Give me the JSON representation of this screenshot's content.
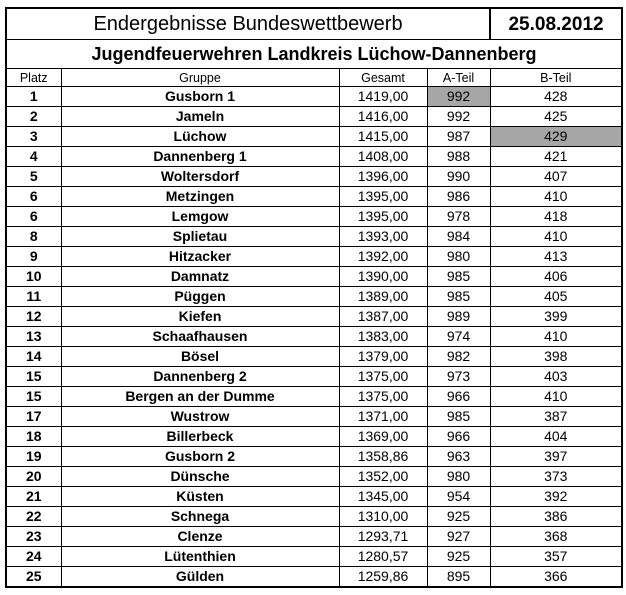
{
  "title": "Endergebnisse  Bundeswettbewerb",
  "date": "25.08.2012",
  "subtitle": "Jugendfeuerwehren Landkreis Lüchow-Dannenberg",
  "headers": {
    "platz": "Platz",
    "gruppe": "Gruppe",
    "gesamt": "Gesamt",
    "a_teil": "A-Teil",
    "b_teil": "B-Teil"
  },
  "highlight_color": "#a6a6a6",
  "rows": [
    {
      "platz": "1",
      "gruppe": "Gusborn 1",
      "gesamt": "1419,00",
      "a": "992",
      "b": "428",
      "a_hl": true,
      "b_hl": false
    },
    {
      "platz": "2",
      "gruppe": "Jameln",
      "gesamt": "1416,00",
      "a": "992",
      "b": "425",
      "a_hl": false,
      "b_hl": false
    },
    {
      "platz": "3",
      "gruppe": "Lüchow",
      "gesamt": "1415,00",
      "a": "987",
      "b": "429",
      "a_hl": false,
      "b_hl": true
    },
    {
      "platz": "4",
      "gruppe": "Dannenberg 1",
      "gesamt": "1408,00",
      "a": "988",
      "b": "421",
      "a_hl": false,
      "b_hl": false
    },
    {
      "platz": "5",
      "gruppe": "Woltersdorf",
      "gesamt": "1396,00",
      "a": "990",
      "b": "407",
      "a_hl": false,
      "b_hl": false
    },
    {
      "platz": "6",
      "gruppe": "Metzingen",
      "gesamt": "1395,00",
      "a": "986",
      "b": "410",
      "a_hl": false,
      "b_hl": false
    },
    {
      "platz": "6",
      "gruppe": "Lemgow",
      "gesamt": "1395,00",
      "a": "978",
      "b": "418",
      "a_hl": false,
      "b_hl": false
    },
    {
      "platz": "8",
      "gruppe": "Splietau",
      "gesamt": "1393,00",
      "a": "984",
      "b": "410",
      "a_hl": false,
      "b_hl": false
    },
    {
      "platz": "9",
      "gruppe": "Hitzacker",
      "gesamt": "1392,00",
      "a": "980",
      "b": "413",
      "a_hl": false,
      "b_hl": false
    },
    {
      "platz": "10",
      "gruppe": "Damnatz",
      "gesamt": "1390,00",
      "a": "985",
      "b": "406",
      "a_hl": false,
      "b_hl": false
    },
    {
      "platz": "11",
      "gruppe": "Püggen",
      "gesamt": "1389,00",
      "a": "985",
      "b": "405",
      "a_hl": false,
      "b_hl": false
    },
    {
      "platz": "12",
      "gruppe": "Kiefen",
      "gesamt": "1387,00",
      "a": "989",
      "b": "399",
      "a_hl": false,
      "b_hl": false
    },
    {
      "platz": "13",
      "gruppe": "Schaafhausen",
      "gesamt": "1383,00",
      "a": "974",
      "b": "410",
      "a_hl": false,
      "b_hl": false
    },
    {
      "platz": "14",
      "gruppe": "Bösel",
      "gesamt": "1379,00",
      "a": "982",
      "b": "398",
      "a_hl": false,
      "b_hl": false
    },
    {
      "platz": "15",
      "gruppe": "Dannenberg 2",
      "gesamt": "1375,00",
      "a": "973",
      "b": "403",
      "a_hl": false,
      "b_hl": false
    },
    {
      "platz": "15",
      "gruppe": "Bergen an der Dumme",
      "gesamt": "1375,00",
      "a": "966",
      "b": "410",
      "a_hl": false,
      "b_hl": false
    },
    {
      "platz": "17",
      "gruppe": "Wustrow",
      "gesamt": "1371,00",
      "a": "985",
      "b": "387",
      "a_hl": false,
      "b_hl": false
    },
    {
      "platz": "18",
      "gruppe": "Billerbeck",
      "gesamt": "1369,00",
      "a": "966",
      "b": "404",
      "a_hl": false,
      "b_hl": false
    },
    {
      "platz": "19",
      "gruppe": "Gusborn 2",
      "gesamt": "1358,86",
      "a": "963",
      "b": "397",
      "a_hl": false,
      "b_hl": false
    },
    {
      "platz": "20",
      "gruppe": "Dünsche",
      "gesamt": "1352,00",
      "a": "980",
      "b": "373",
      "a_hl": false,
      "b_hl": false
    },
    {
      "platz": "21",
      "gruppe": "Küsten",
      "gesamt": "1345,00",
      "a": "954",
      "b": "392",
      "a_hl": false,
      "b_hl": false
    },
    {
      "platz": "22",
      "gruppe": "Schnega",
      "gesamt": "1310,00",
      "a": "925",
      "b": "386",
      "a_hl": false,
      "b_hl": false
    },
    {
      "platz": "23",
      "gruppe": "Clenze",
      "gesamt": "1293,71",
      "a": "927",
      "b": "368",
      "a_hl": false,
      "b_hl": false
    },
    {
      "platz": "24",
      "gruppe": "Lütenthien",
      "gesamt": "1280,57",
      "a": "925",
      "b": "357",
      "a_hl": false,
      "b_hl": false
    },
    {
      "platz": "25",
      "gruppe": "Gülden",
      "gesamt": "1259,86",
      "a": "895",
      "b": "366",
      "a_hl": false,
      "b_hl": false
    }
  ]
}
